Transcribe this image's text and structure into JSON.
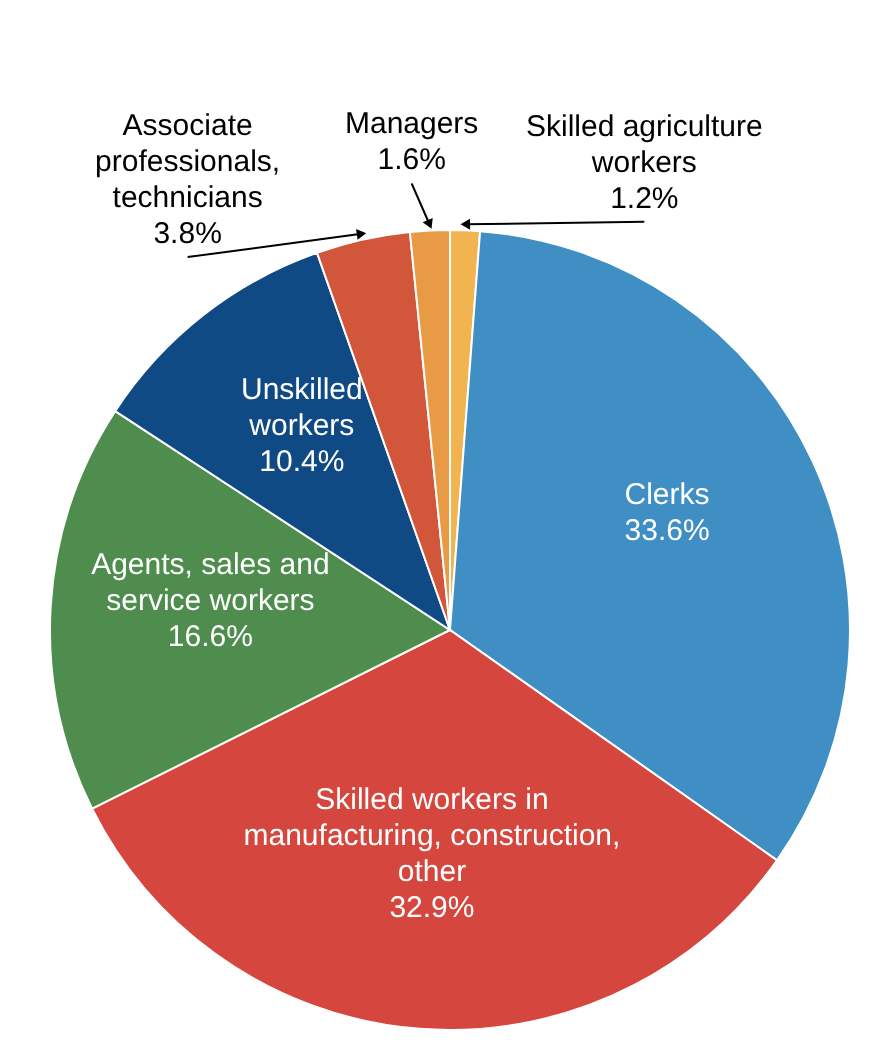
{
  "chart_data": {
    "type": "pie",
    "categories": [
      "Skilled agriculture\nworkers",
      "Clerks",
      "Skilled workers in\nmanufacturing, construction,\nother",
      "Agents, sales and\nservice workers",
      "Unskilled\nworkers",
      "Associate\nprofessionals,\ntechnicians",
      "Managers"
    ],
    "values": [
      1.2,
      33.6,
      32.9,
      16.6,
      10.4,
      3.8,
      1.6
    ],
    "value_labels": [
      "1.2%",
      "33.6%",
      "32.9%",
      "16.6%",
      "10.4%",
      "3.8%",
      "1.6%"
    ],
    "colors": [
      "#f2b451",
      "#3f8fc5",
      "#d4463e",
      "#4f8d4e",
      "#104a84",
      "#d2563a",
      "#e89a45"
    ]
  }
}
